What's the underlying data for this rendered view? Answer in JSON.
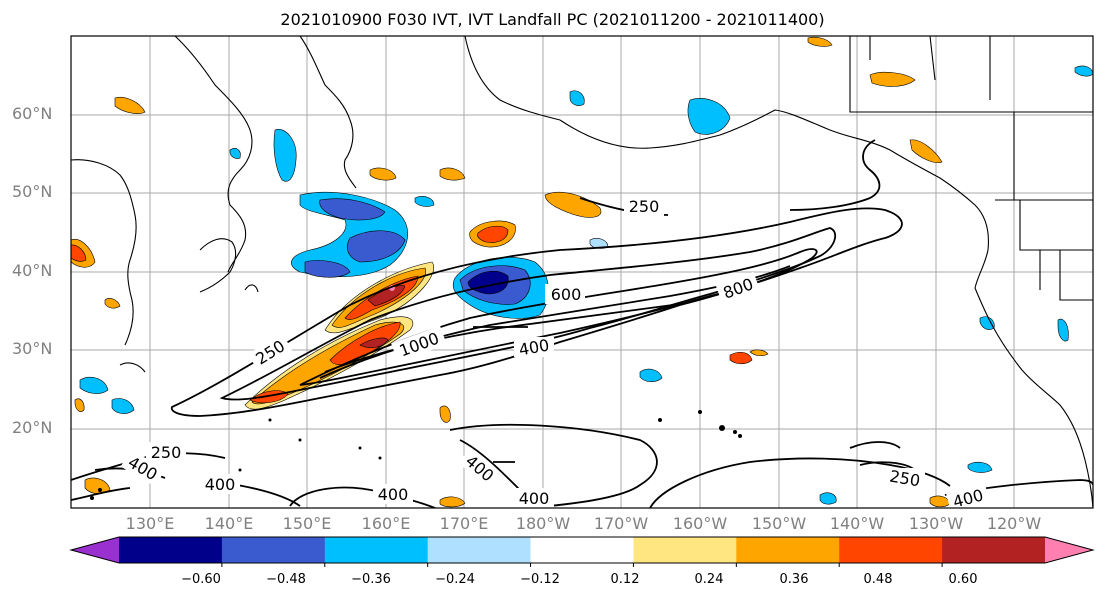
{
  "title": "2021010900 F030 IVT, IVT Landfall PC (2021011200 - 2021011400)",
  "lat_labels": [
    "60°N",
    "50°N",
    "40°N",
    "30°N",
    "20°N"
  ],
  "lon_labels": [
    "130°E",
    "140°E",
    "150°E",
    "160°E",
    "170°E",
    "180°W",
    "170°W",
    "160°W",
    "150°W",
    "140°W",
    "130°W",
    "120°W"
  ],
  "contour_labels": [
    "250",
    "250",
    "250",
    "250",
    "400",
    "400",
    "400",
    "400",
    "400",
    "600",
    "800",
    "1000",
    "400",
    "250",
    "400",
    "400"
  ],
  "colorbar": {
    "colors": [
      "#9b30d0",
      "#00008b",
      "#3a5bd0",
      "#00bfff",
      "#b0e0ff",
      "#ffffff",
      "#ffe680",
      "#ffa500",
      "#ff4500",
      "#b22222",
      "#ff80b0"
    ],
    "ticks": [
      "−0.60",
      "−0.48",
      "−0.36",
      "−0.24",
      "−0.12",
      "0.12",
      "0.24",
      "0.36",
      "0.48",
      "0.60"
    ]
  }
}
